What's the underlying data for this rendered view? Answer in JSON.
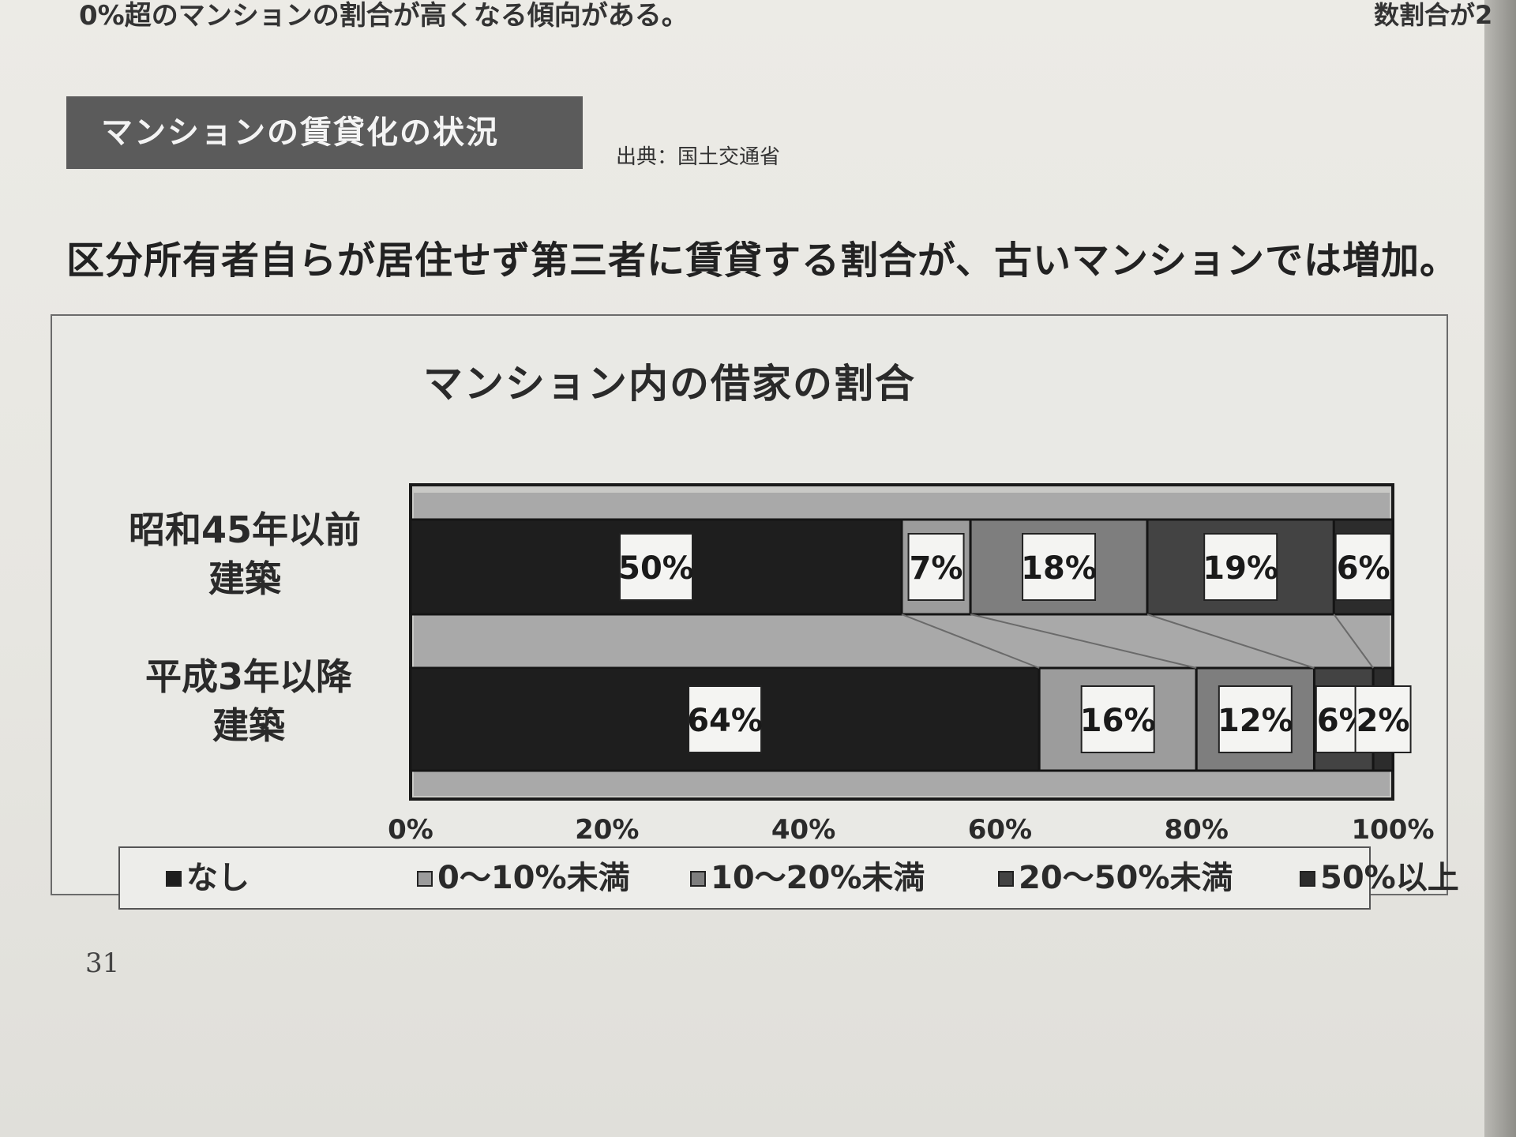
{
  "page": {
    "top_left_text": "0%超のマンションの割合が高くなる傾向がある。",
    "top_right_text": "数割合が2",
    "section_title": "マンションの賃貸化の状況",
    "source": "出典：国土交通省",
    "lead": "区分所有者自らが居住せず第三者に賃貸する割合が、古いマンションでは増加。",
    "page_number": "31"
  },
  "colors": {
    "none": "#1e1e1e",
    "under10": "#9c9c9c",
    "10to20": "#7e7e7e",
    "20to50": "#434343",
    "over50": "#2c2c2c",
    "track": "#a9a9a9"
  },
  "chart_data": {
    "type": "bar",
    "orientation": "horizontal",
    "stacked": true,
    "title": "マンション内の借家の割合",
    "categories": [
      "昭和45年以前\n建築",
      "平成3年以降\n建築"
    ],
    "series": [
      {
        "name": "なし",
        "values": [
          50,
          64
        ],
        "labels": [
          "50%",
          "64%"
        ]
      },
      {
        "name": "0～10%未満",
        "values": [
          7,
          16
        ],
        "labels": [
          "7%",
          "16%"
        ]
      },
      {
        "name": "10～20%未満",
        "values": [
          18,
          12
        ],
        "labels": [
          "18%",
          "12%"
        ]
      },
      {
        "name": "20～50%未満",
        "values": [
          19,
          6
        ],
        "labels": [
          "19%",
          "6%"
        ]
      },
      {
        "name": "50%以上",
        "values": [
          6,
          2
        ],
        "labels": [
          "6%",
          "2%"
        ]
      }
    ],
    "xticks": [
      "0%",
      "20%",
      "40%",
      "60%",
      "80%",
      "100%"
    ],
    "xlim": [
      0,
      100
    ],
    "legend_position": "bottom"
  }
}
